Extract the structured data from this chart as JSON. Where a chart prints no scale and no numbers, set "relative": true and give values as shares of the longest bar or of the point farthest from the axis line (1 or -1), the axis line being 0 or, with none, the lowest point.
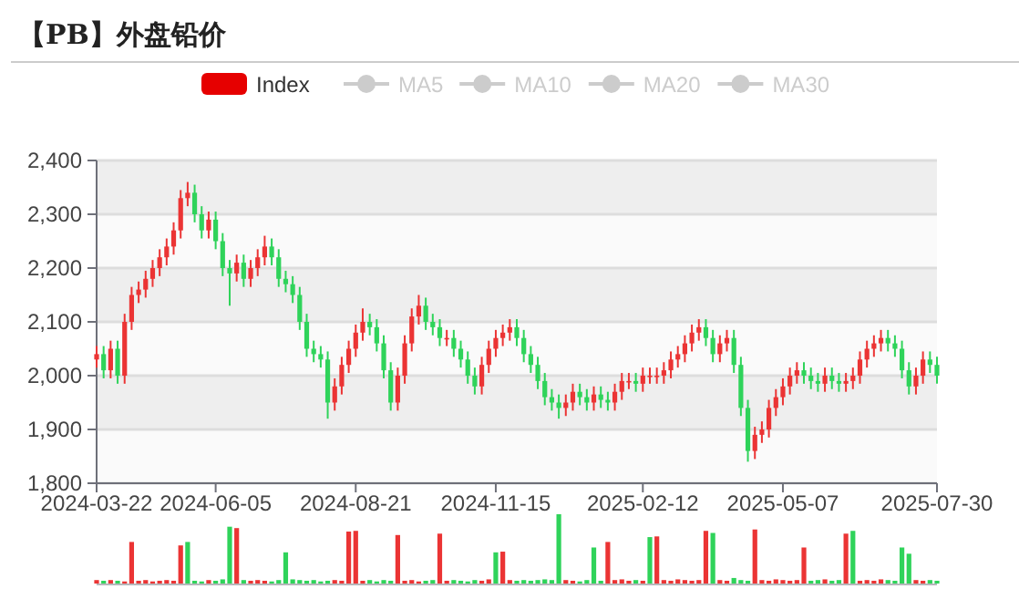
{
  "chart_data": [
    {
      "type": "candlestick",
      "title": "【PB】外盘铅价",
      "legend": "top",
      "grid": true,
      "ylim": [
        1800,
        2400
      ],
      "yticks": [
        {
          "value": 1800,
          "label": "1,800"
        },
        {
          "value": 1900,
          "label": "1,900"
        },
        {
          "value": 2000,
          "label": "2,000"
        },
        {
          "value": 2100,
          "label": "2,100"
        },
        {
          "value": 2200,
          "label": "2,200"
        },
        {
          "value": 2300,
          "label": "2,300"
        },
        {
          "value": 2400,
          "label": "2,400"
        }
      ],
      "categories": [
        "2024-03-22",
        null,
        null,
        null,
        null,
        null,
        null,
        null,
        null,
        null,
        null,
        null,
        null,
        null,
        null,
        null,
        null,
        "2024-06-05",
        null,
        null,
        null,
        null,
        null,
        null,
        null,
        null,
        null,
        null,
        null,
        null,
        null,
        null,
        null,
        null,
        null,
        null,
        null,
        "2024-08-21",
        null,
        null,
        null,
        null,
        null,
        null,
        null,
        null,
        null,
        null,
        null,
        null,
        null,
        null,
        null,
        null,
        null,
        null,
        null,
        "2024-11-15",
        null,
        null,
        null,
        null,
        null,
        null,
        null,
        null,
        null,
        null,
        null,
        null,
        null,
        null,
        null,
        null,
        null,
        null,
        null,
        null,
        "2025-02-12",
        null,
        null,
        null,
        null,
        null,
        null,
        null,
        null,
        null,
        null,
        null,
        null,
        null,
        null,
        null,
        null,
        null,
        null,
        null,
        "2025-05-07",
        null,
        null,
        null,
        null,
        null,
        null,
        null,
        null,
        null,
        null,
        null,
        null,
        null,
        null,
        null,
        null,
        null,
        null,
        null,
        null,
        null,
        "2025-07-30"
      ],
      "series": [
        {
          "name": "Index",
          "type": "candlestick",
          "color": "#e60000",
          "ohlc": [
            [
              2030,
              2055,
              2015,
              2040
            ],
            [
              2040,
              2055,
              1995,
              2010
            ],
            [
              2010,
              2065,
              1995,
              2050
            ],
            [
              2050,
              2065,
              1985,
              2000
            ],
            [
              2000,
              2115,
              1985,
              2100
            ],
            [
              2100,
              2165,
              2085,
              2150
            ],
            [
              2150,
              2175,
              2135,
              2160
            ],
            [
              2160,
              2195,
              2145,
              2180
            ],
            [
              2180,
              2215,
              2165,
              2200
            ],
            [
              2200,
              2235,
              2185,
              2220
            ],
            [
              2220,
              2255,
              2205,
              2240
            ],
            [
              2240,
              2285,
              2225,
              2270
            ],
            [
              2270,
              2345,
              2255,
              2330
            ],
            [
              2330,
              2360,
              2315,
              2340
            ],
            [
              2340,
              2355,
              2285,
              2300
            ],
            [
              2300,
              2315,
              2255,
              2270
            ],
            [
              2270,
              2305,
              2255,
              2290
            ],
            [
              2290,
              2305,
              2235,
              2250
            ],
            [
              2250,
              2265,
              2185,
              2200
            ],
            [
              2200,
              2215,
              2130,
              2190
            ],
            [
              2190,
              2225,
              2175,
              2210
            ],
            [
              2210,
              2225,
              2165,
              2180
            ],
            [
              2180,
              2215,
              2165,
              2200
            ],
            [
              2200,
              2235,
              2185,
              2220
            ],
            [
              2220,
              2260,
              2205,
              2240
            ],
            [
              2240,
              2255,
              2205,
              2220
            ],
            [
              2220,
              2235,
              2165,
              2180
            ],
            [
              2180,
              2195,
              2155,
              2170
            ],
            [
              2170,
              2185,
              2135,
              2150
            ],
            [
              2150,
              2165,
              2085,
              2100
            ],
            [
              2100,
              2115,
              2035,
              2050
            ],
            [
              2050,
              2065,
              2025,
              2040
            ],
            [
              2040,
              2055,
              2015,
              2030
            ],
            [
              2030,
              2045,
              1920,
              1950
            ],
            [
              1950,
              1995,
              1935,
              1980
            ],
            [
              1980,
              2035,
              1965,
              2020
            ],
            [
              2020,
              2065,
              2005,
              2050
            ],
            [
              2050,
              2095,
              2035,
              2080
            ],
            [
              2080,
              2125,
              2065,
              2100
            ],
            [
              2100,
              2115,
              2075,
              2090
            ],
            [
              2090,
              2105,
              2045,
              2060
            ],
            [
              2060,
              2075,
              1995,
              2010
            ],
            [
              2010,
              2025,
              1935,
              1950
            ],
            [
              1950,
              2015,
              1935,
              2000
            ],
            [
              2000,
              2075,
              1985,
              2060
            ],
            [
              2060,
              2125,
              2045,
              2110
            ],
            [
              2110,
              2150,
              2095,
              2130
            ],
            [
              2130,
              2145,
              2085,
              2100
            ],
            [
              2100,
              2115,
              2075,
              2090
            ],
            [
              2090,
              2105,
              2055,
              2070
            ],
            [
              2070,
              2085,
              2055,
              2070
            ],
            [
              2070,
              2085,
              2035,
              2050
            ],
            [
              2050,
              2065,
              2015,
              2030
            ],
            [
              2030,
              2045,
              1985,
              2000
            ],
            [
              2000,
              2015,
              1965,
              1980
            ],
            [
              1980,
              2035,
              1965,
              2020
            ],
            [
              2020,
              2065,
              2005,
              2050
            ],
            [
              2050,
              2085,
              2035,
              2070
            ],
            [
              2070,
              2095,
              2055,
              2080
            ],
            [
              2080,
              2105,
              2065,
              2090
            ],
            [
              2090,
              2105,
              2055,
              2070
            ],
            [
              2070,
              2085,
              2025,
              2040
            ],
            [
              2040,
              2055,
              2005,
              2020
            ],
            [
              2020,
              2035,
              1975,
              1990
            ],
            [
              1990,
              2005,
              1945,
              1960
            ],
            [
              1960,
              1975,
              1935,
              1950
            ],
            [
              1950,
              1965,
              1920,
              1940
            ],
            [
              1940,
              1965,
              1925,
              1950
            ],
            [
              1950,
              1985,
              1935,
              1970
            ],
            [
              1970,
              1985,
              1945,
              1960
            ],
            [
              1960,
              1975,
              1935,
              1950
            ],
            [
              1950,
              1980,
              1935,
              1965
            ],
            [
              1965,
              1980,
              1940,
              1955
            ],
            [
              1955,
              1970,
              1935,
              1950
            ],
            [
              1950,
              1985,
              1935,
              1970
            ],
            [
              1970,
              2005,
              1955,
              1990
            ],
            [
              1990,
              2005,
              1975,
              1990
            ],
            [
              1990,
              2005,
              1970,
              1985
            ],
            [
              1985,
              2015,
              1970,
              2000
            ],
            [
              2000,
              2015,
              1985,
              2000
            ],
            [
              2000,
              2015,
              1985,
              2000
            ],
            [
              2000,
              2025,
              1985,
              2010
            ],
            [
              2010,
              2045,
              1995,
              2030
            ],
            [
              2030,
              2055,
              2015,
              2040
            ],
            [
              2040,
              2075,
              2025,
              2060
            ],
            [
              2060,
              2095,
              2045,
              2080
            ],
            [
              2080,
              2105,
              2065,
              2090
            ],
            [
              2090,
              2105,
              2055,
              2070
            ],
            [
              2070,
              2085,
              2025,
              2040
            ],
            [
              2040,
              2075,
              2025,
              2060
            ],
            [
              2060,
              2085,
              2045,
              2070
            ],
            [
              2070,
              2085,
              2005,
              2020
            ],
            [
              2020,
              2035,
              1925,
              1940
            ],
            [
              1940,
              1955,
              1840,
              1860
            ],
            [
              1860,
              1905,
              1845,
              1890
            ],
            [
              1890,
              1915,
              1875,
              1900
            ],
            [
              1900,
              1955,
              1885,
              1940
            ],
            [
              1940,
              1975,
              1925,
              1960
            ],
            [
              1960,
              1995,
              1945,
              1980
            ],
            [
              1980,
              2015,
              1965,
              2000
            ],
            [
              2000,
              2025,
              1985,
              2010
            ],
            [
              2010,
              2025,
              1985,
              2000
            ],
            [
              2000,
              2015,
              1975,
              1990
            ],
            [
              1990,
              2005,
              1970,
              1985
            ],
            [
              1985,
              2015,
              1970,
              2000
            ],
            [
              2000,
              2015,
              1975,
              1990
            ],
            [
              1990,
              2005,
              1970,
              1985
            ],
            [
              1985,
              2005,
              1970,
              1990
            ],
            [
              1990,
              2015,
              1975,
              2000
            ],
            [
              2000,
              2045,
              1985,
              2030
            ],
            [
              2030,
              2065,
              2015,
              2050
            ],
            [
              2050,
              2075,
              2035,
              2060
            ],
            [
              2060,
              2085,
              2045,
              2070
            ],
            [
              2070,
              2085,
              2045,
              2060
            ],
            [
              2060,
              2075,
              2035,
              2050
            ],
            [
              2050,
              2065,
              1995,
              2010
            ],
            [
              2010,
              2025,
              1965,
              1980
            ],
            [
              1980,
              2015,
              1965,
              2000
            ],
            [
              2000,
              2045,
              1985,
              2030
            ],
            [
              2030,
              2045,
              2005,
              2020
            ],
            [
              2020,
              2035,
              1985,
              2000
            ]
          ],
          "colors": [
            "#eb3434",
            "#2fd35a",
            "#eb3434",
            "#2fd35a",
            "#eb3434",
            "#eb3434",
            "#eb3434",
            "#eb3434",
            "#eb3434",
            "#eb3434",
            "#eb3434",
            "#eb3434",
            "#eb3434",
            "#eb3434",
            "#2fd35a",
            "#2fd35a",
            "#eb3434",
            "#2fd35a",
            "#2fd35a",
            "#2fd35a",
            "#eb3434",
            "#2fd35a",
            "#eb3434",
            "#eb3434",
            "#eb3434",
            "#2fd35a",
            "#2fd35a",
            "#2fd35a",
            "#2fd35a",
            "#2fd35a",
            "#2fd35a",
            "#2fd35a",
            "#2fd35a",
            "#2fd35a",
            "#eb3434",
            "#eb3434",
            "#eb3434",
            "#eb3434",
            "#eb3434",
            "#2fd35a",
            "#2fd35a",
            "#2fd35a",
            "#2fd35a",
            "#eb3434",
            "#eb3434",
            "#eb3434",
            "#eb3434",
            "#2fd35a",
            "#2fd35a",
            "#2fd35a",
            "#eb3434",
            "#2fd35a",
            "#2fd35a",
            "#2fd35a",
            "#2fd35a",
            "#eb3434",
            "#eb3434",
            "#eb3434",
            "#eb3434",
            "#eb3434",
            "#2fd35a",
            "#2fd35a",
            "#2fd35a",
            "#2fd35a",
            "#2fd35a",
            "#2fd35a",
            "#2fd35a",
            "#eb3434",
            "#eb3434",
            "#2fd35a",
            "#2fd35a",
            "#eb3434",
            "#2fd35a",
            "#2fd35a",
            "#eb3434",
            "#eb3434",
            "#eb3434",
            "#2fd35a",
            "#eb3434",
            "#eb3434",
            "#eb3434",
            "#eb3434",
            "#eb3434",
            "#eb3434",
            "#eb3434",
            "#eb3434",
            "#eb3434",
            "#2fd35a",
            "#2fd35a",
            "#eb3434",
            "#eb3434",
            "#2fd35a",
            "#2fd35a",
            "#2fd35a",
            "#eb3434",
            "#eb3434",
            "#eb3434",
            "#eb3434",
            "#eb3434",
            "#eb3434",
            "#eb3434",
            "#2fd35a",
            "#2fd35a",
            "#2fd35a",
            "#eb3434",
            "#2fd35a",
            "#2fd35a",
            "#eb3434",
            "#eb3434",
            "#eb3434",
            "#eb3434",
            "#eb3434",
            "#eb3434",
            "#2fd35a",
            "#2fd35a",
            "#2fd35a",
            "#2fd35a",
            "#eb3434",
            "#eb3434",
            "#2fd35a",
            "#2fd35a"
          ]
        },
        {
          "name": "MA5",
          "type": "line",
          "color": "#cccccc",
          "values": [
            null,
            null,
            null,
            null,
            null,
            null,
            null,
            null,
            null,
            null,
            null,
            null,
            null,
            null,
            null,
            null,
            null,
            null,
            null,
            null,
            null,
            null,
            null,
            null,
            null,
            null,
            null,
            null,
            null,
            null,
            null,
            null,
            null,
            null,
            null,
            null,
            null,
            null,
            null,
            null,
            null,
            null,
            null,
            null,
            null,
            null,
            null,
            null,
            null,
            null,
            null,
            null,
            null,
            null,
            null,
            null,
            null,
            null,
            null,
            null,
            null,
            null,
            null,
            null,
            null,
            null,
            null,
            null,
            null,
            null,
            null,
            null,
            null,
            null,
            null,
            null,
            null,
            null,
            null,
            null,
            null,
            null,
            null,
            null,
            null,
            null,
            null,
            null,
            null,
            null,
            null,
            null,
            null,
            null,
            null,
            null,
            null,
            null,
            null,
            null,
            null,
            null,
            null,
            null,
            null,
            null,
            null,
            null,
            null,
            null,
            null,
            null,
            null,
            null,
            null,
            null,
            null,
            null,
            null,
            null,
            null
          ]
        },
        {
          "name": "MA10",
          "type": "line",
          "color": "#cccccc",
          "values": [
            null,
            null,
            null,
            null,
            null,
            null,
            null,
            null,
            null,
            null,
            null,
            null,
            null,
            null,
            null,
            null,
            null,
            null,
            null,
            null,
            null,
            null,
            null,
            null,
            null,
            null,
            null,
            null,
            null,
            null,
            null,
            null,
            null,
            null,
            null,
            null,
            null,
            null,
            null,
            null,
            null,
            null,
            null,
            null,
            null,
            null,
            null,
            null,
            null,
            null,
            null,
            null,
            null,
            null,
            null,
            null,
            null,
            null,
            null,
            null,
            null,
            null,
            null,
            null,
            null,
            null,
            null,
            null,
            null,
            null,
            null,
            null,
            null,
            null,
            null,
            null,
            null,
            null,
            null,
            null,
            null,
            null,
            null,
            null,
            null,
            null,
            null,
            null,
            null,
            null,
            null,
            null,
            null,
            null,
            null,
            null,
            null,
            null,
            null,
            null,
            null,
            null,
            null,
            null,
            null,
            null,
            null,
            null,
            null,
            null,
            null,
            null,
            null,
            null,
            null,
            null,
            null,
            null,
            null,
            null,
            null
          ]
        },
        {
          "name": "MA20",
          "type": "line",
          "color": "#cccccc",
          "values": [
            null,
            null,
            null,
            null,
            null,
            null,
            null,
            null,
            null,
            null,
            null,
            null,
            null,
            null,
            null,
            null,
            null,
            null,
            null,
            null,
            null,
            null,
            null,
            null,
            null,
            null,
            null,
            null,
            null,
            null,
            null,
            null,
            null,
            null,
            null,
            null,
            null,
            null,
            null,
            null,
            null,
            null,
            null,
            null,
            null,
            null,
            null,
            null,
            null,
            null,
            null,
            null,
            null,
            null,
            null,
            null,
            null,
            null,
            null,
            null,
            null,
            null,
            null,
            null,
            null,
            null,
            null,
            null,
            null,
            null,
            null,
            null,
            null,
            null,
            null,
            null,
            null,
            null,
            null,
            null,
            null,
            null,
            null,
            null,
            null,
            null,
            null,
            null,
            null,
            null,
            null,
            null,
            null,
            null,
            null,
            null,
            null,
            null,
            null,
            null,
            null,
            null,
            null,
            null,
            null,
            null,
            null,
            null,
            null,
            null,
            null,
            null,
            null,
            null,
            null,
            null,
            null,
            null,
            null,
            null,
            null
          ]
        },
        {
          "name": "MA30",
          "type": "line",
          "color": "#cccccc",
          "values": [
            null,
            null,
            null,
            null,
            null,
            null,
            null,
            null,
            null,
            null,
            null,
            null,
            null,
            null,
            null,
            null,
            null,
            null,
            null,
            null,
            null,
            null,
            null,
            null,
            null,
            null,
            null,
            null,
            null,
            null,
            null,
            null,
            null,
            null,
            null,
            null,
            null,
            null,
            null,
            null,
            null,
            null,
            null,
            null,
            null,
            null,
            null,
            null,
            null,
            null,
            null,
            null,
            null,
            null,
            null,
            null,
            null,
            null,
            null,
            null,
            null,
            null,
            null,
            null,
            null,
            null,
            null,
            null,
            null,
            null,
            null,
            null,
            null,
            null,
            null,
            null,
            null,
            null,
            null,
            null,
            null,
            null,
            null,
            null,
            null,
            null,
            null,
            null,
            null,
            null,
            null,
            null,
            null,
            null,
            null,
            null,
            null,
            null,
            null,
            null,
            null,
            null,
            null,
            null,
            null,
            null,
            null,
            null,
            null,
            null,
            null,
            null,
            null,
            null,
            null,
            null,
            null,
            null,
            null,
            null,
            null
          ]
        }
      ]
    },
    {
      "type": "bar",
      "relative": true,
      "categories": [
        null,
        null,
        null,
        null,
        null,
        null,
        null,
        null,
        null,
        null,
        null,
        null,
        null,
        null,
        null,
        null,
        null,
        null,
        null,
        null,
        null,
        null,
        null,
        null,
        null,
        null,
        null,
        null,
        null,
        null,
        null,
        null,
        null,
        null,
        null,
        null,
        null,
        null,
        null,
        null,
        null,
        null,
        null,
        null,
        null,
        null,
        null,
        null,
        null,
        null,
        null,
        null,
        null,
        null,
        null,
        null,
        null,
        null,
        null,
        null,
        null,
        null,
        null,
        null,
        null,
        null,
        null,
        null,
        null,
        null,
        null,
        null,
        null,
        null,
        null,
        null,
        null,
        null,
        null,
        null,
        null,
        null,
        null,
        null,
        null,
        null,
        null,
        null,
        null,
        null,
        null,
        null,
        null,
        null,
        null,
        null,
        null,
        null,
        null,
        null,
        null,
        null,
        null,
        null,
        null,
        null,
        null,
        null,
        null,
        null,
        null,
        null,
        null,
        null,
        null,
        null,
        null,
        null,
        null,
        null,
        null
      ],
      "values": [
        0.05,
        0.04,
        0.05,
        0.04,
        0.03,
        0.6,
        0.04,
        0.05,
        0.03,
        0.04,
        0.05,
        0.04,
        0.55,
        0.6,
        0.04,
        0.03,
        0.05,
        0.04,
        0.06,
        0.82,
        0.8,
        0.05,
        0.04,
        0.05,
        0.04,
        0.03,
        0.05,
        0.45,
        0.06,
        0.05,
        0.04,
        0.05,
        0.03,
        0.04,
        0.05,
        0.04,
        0.75,
        0.76,
        0.04,
        0.05,
        0.03,
        0.05,
        0.04,
        0.7,
        0.04,
        0.05,
        0.03,
        0.04,
        0.05,
        0.72,
        0.04,
        0.05,
        0.04,
        0.03,
        0.05,
        0.04,
        0.06,
        0.45,
        0.46,
        0.05,
        0.04,
        0.05,
        0.04,
        0.05,
        0.06,
        0.05,
        1,
        0.05,
        0.04,
        0.03,
        0.05,
        0.52,
        0.04,
        0.6,
        0.05,
        0.06,
        0.04,
        0.05,
        0.04,
        0.67,
        0.68,
        0.05,
        0.04,
        0.06,
        0.05,
        0.04,
        0.05,
        0.76,
        0.73,
        0.05,
        0.04,
        0.08,
        0.05,
        0.04,
        0.78,
        0.05,
        0.04,
        0.06,
        0.05,
        0.04,
        0.05,
        0.52,
        0.04,
        0.05,
        0.06,
        0.04,
        0.05,
        0.72,
        0.76,
        0.04,
        0.05,
        0.04,
        0.06,
        0.05,
        0.04,
        0.52,
        0.43,
        0.05,
        0.04,
        0.05,
        0.04
      ],
      "colors": [
        "#eb3434",
        "#2fd35a",
        "#eb3434",
        "#2fd35a",
        "#eb3434",
        "#eb3434",
        "#eb3434",
        "#eb3434",
        "#eb3434",
        "#eb3434",
        "#eb3434",
        "#eb3434",
        "#eb3434",
        "#2fd35a",
        "#2fd35a",
        "#2fd35a",
        "#eb3434",
        "#2fd35a",
        "#2fd35a",
        "#2fd35a",
        "#eb3434",
        "#2fd35a",
        "#eb3434",
        "#eb3434",
        "#eb3434",
        "#2fd35a",
        "#2fd35a",
        "#2fd35a",
        "#2fd35a",
        "#2fd35a",
        "#2fd35a",
        "#2fd35a",
        "#2fd35a",
        "#2fd35a",
        "#eb3434",
        "#eb3434",
        "#eb3434",
        "#eb3434",
        "#eb3434",
        "#2fd35a",
        "#2fd35a",
        "#2fd35a",
        "#2fd35a",
        "#eb3434",
        "#eb3434",
        "#eb3434",
        "#eb3434",
        "#2fd35a",
        "#2fd35a",
        "#eb3434",
        "#eb3434",
        "#2fd35a",
        "#2fd35a",
        "#2fd35a",
        "#2fd35a",
        "#eb3434",
        "#eb3434",
        "#2fd35a",
        "#eb3434",
        "#eb3434",
        "#2fd35a",
        "#2fd35a",
        "#2fd35a",
        "#2fd35a",
        "#2fd35a",
        "#2fd35a",
        "#2fd35a",
        "#eb3434",
        "#eb3434",
        "#2fd35a",
        "#2fd35a",
        "#2fd35a",
        "#2fd35a",
        "#eb3434",
        "#eb3434",
        "#eb3434",
        "#eb3434",
        "#2fd35a",
        "#eb3434",
        "#2fd35a",
        "#eb3434",
        "#eb3434",
        "#eb3434",
        "#eb3434",
        "#eb3434",
        "#eb3434",
        "#eb3434",
        "#eb3434",
        "#2fd35a",
        "#eb3434",
        "#eb3434",
        "#2fd35a",
        "#2fd35a",
        "#2fd35a",
        "#eb3434",
        "#eb3434",
        "#eb3434",
        "#eb3434",
        "#eb3434",
        "#eb3434",
        "#eb3434",
        "#eb3434",
        "#2fd35a",
        "#2fd35a",
        "#eb3434",
        "#2fd35a",
        "#2fd35a",
        "#eb3434",
        "#2fd35a",
        "#eb3434",
        "#eb3434",
        "#eb3434",
        "#eb3434",
        "#2fd35a",
        "#2fd35a",
        "#2fd35a",
        "#2fd35a",
        "#eb3434",
        "#eb3434",
        "#2fd35a",
        "#2fd35a"
      ]
    }
  ]
}
